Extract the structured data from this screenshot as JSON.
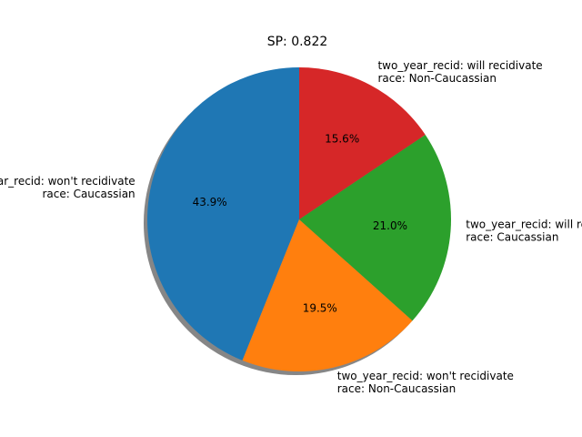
{
  "chart_data": {
    "type": "pie",
    "title": "SP: 0.822",
    "slices": [
      {
        "label_lines": [
          "two_year_recid: won't recidivate",
          "race: Caucassian"
        ],
        "value": 43.9,
        "label": "43.9%",
        "color": "#1f77b4"
      },
      {
        "label_lines": [
          "two_year_recid: won't recidivate",
          "race: Non-Caucassian"
        ],
        "value": 19.5,
        "label": "19.5%",
        "color": "#ff7f0e"
      },
      {
        "label_lines": [
          "two_year_recid: will recidivate",
          "race: Caucassian"
        ],
        "value": 21.0,
        "label": "21.0%",
        "color": "#2ca02c"
      },
      {
        "label_lines": [
          "two_year_recid: will recidivate",
          "race: Non-Caucassian"
        ],
        "value": 15.6,
        "label": "15.6%",
        "color": "#d62728"
      }
    ],
    "start_angle_deg": 90,
    "direction": "counterclockwise",
    "shadow": true,
    "legend": "none"
  }
}
